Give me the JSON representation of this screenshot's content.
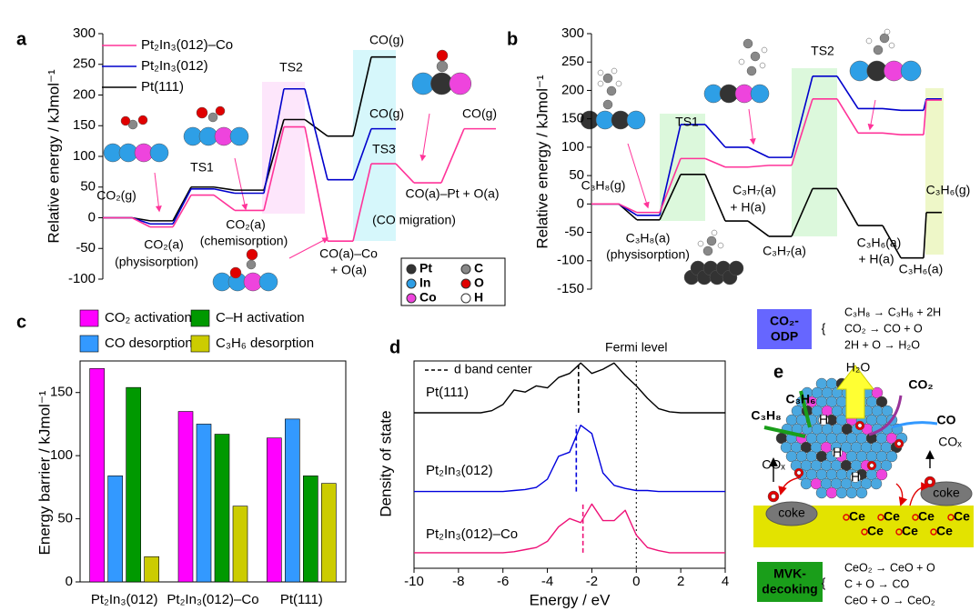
{
  "chart_data": [
    {
      "type": "step",
      "panel": "a",
      "y_label": "Relative energy / kJmol⁻¹",
      "ylim": [
        -100,
        300
      ],
      "yticks": [
        -100,
        -50,
        0,
        50,
        100,
        150,
        200,
        250,
        300
      ],
      "series": [
        {
          "name": "Pt₂In₃(012)–Co",
          "color": "#ff3399",
          "values": [
            0,
            -15,
            37,
            12,
            148,
            -38,
            88,
            57,
            145
          ]
        },
        {
          "name": "Pt₂In₃(012)",
          "color": "#0000cc",
          "values": [
            0,
            -10,
            47,
            40,
            210,
            62,
            145,
            null,
            null
          ]
        },
        {
          "name": "Pt(111)",
          "color": "#000000",
          "values": [
            0,
            -5,
            50,
            45,
            160,
            133,
            262,
            null,
            null
          ]
        }
      ],
      "annotations": [
        "CO₂(g)",
        "CO₂(a)",
        "(physisorption)",
        "TS1",
        "CO₂(a)",
        "(chemisorption)",
        "TS2",
        "CO(g)",
        "CO(g)",
        "TS3",
        "CO(a)–Co",
        "+ O(a)",
        "CO(a)–Pt + O(a)",
        "(CO migration)",
        "CO(g)"
      ],
      "element_key": [
        {
          "name": "Pt",
          "color": "#333333"
        },
        {
          "name": "C",
          "color": "#888888"
        },
        {
          "name": "In",
          "color": "#2e9fe6"
        },
        {
          "name": "O",
          "color": "#e00000"
        },
        {
          "name": "Co",
          "color": "#ee44dd"
        },
        {
          "name": "H",
          "color": "#ffffff"
        }
      ]
    },
    {
      "type": "step",
      "panel": "b",
      "y_label": "Relative energy / kJmol⁻¹",
      "ylim": [
        -150,
        300
      ],
      "yticks": [
        -150,
        -100,
        -50,
        0,
        50,
        100,
        150,
        200,
        250,
        300
      ],
      "series": [
        {
          "name": "Pt₂In₃(012)–Co",
          "color": "#ff3399",
          "values": [
            0,
            -15,
            80,
            65,
            68,
            185,
            125,
            122,
            183
          ]
        },
        {
          "name": "Pt₂In₃(012)",
          "color": "#0000cc",
          "values": [
            0,
            -20,
            140,
            100,
            82,
            225,
            168,
            165,
            185
          ]
        },
        {
          "name": "Pt(111)",
          "color": "#000000",
          "values": [
            0,
            -28,
            52,
            -30,
            -57,
            27,
            -38,
            -95,
            -15
          ]
        }
      ],
      "annotations": [
        "TS1",
        "C₃H₈(g)",
        "C₃H₈(a)",
        "(physisorption)",
        "C₃H₇(a)",
        "+ H(a)",
        "C₃H₇(a)",
        "TS2",
        "C₃H₆(a)",
        "+ H(a)",
        "C₃H₆(a)",
        "C₃H₆(g)"
      ]
    },
    {
      "type": "bar",
      "panel": "c",
      "y_label": "Energy barrier / kJmol⁻¹",
      "categories": [
        "Pt₂In₃(012)",
        "Pt₂In₃(012)–Co",
        "Pt(111)"
      ],
      "ylim": [
        0,
        175
      ],
      "yticks": [
        0,
        50,
        100,
        150
      ],
      "series": [
        {
          "name": "CO₂ activation",
          "color": "#ff00ff",
          "values": [
            169,
            135,
            114
          ]
        },
        {
          "name": "CO desorption",
          "color": "#3399ff",
          "values": [
            84,
            125,
            129
          ]
        },
        {
          "name": "C–H activation",
          "color": "#009900",
          "values": [
            154,
            117,
            84
          ]
        },
        {
          "name": "C₃H₆ desorption",
          "color": "#cccc00",
          "values": [
            20,
            60,
            78
          ]
        }
      ]
    },
    {
      "type": "line",
      "panel": "d",
      "x_label": "Energy / eV",
      "y_label": "Density of state",
      "xlim": [
        -10,
        4
      ],
      "xticks": [
        -10,
        -8,
        -6,
        -4,
        -2,
        0,
        2,
        4
      ],
      "ylim": [
        0,
        10
      ],
      "annotations": [
        "Fermi level"
      ],
      "fermi_level": 0,
      "d_band_label": "d band center",
      "x": [
        -10,
        -9.5,
        -9,
        -8.5,
        -8,
        -7.5,
        -7,
        -6.5,
        -6,
        -5.5,
        -5,
        -4.5,
        -4,
        -3.5,
        -3,
        -2.5,
        -2,
        -1.5,
        -1,
        -0.5,
        0,
        0.5,
        1,
        1.5,
        2,
        2.5,
        3,
        3.5,
        4
      ],
      "series": [
        {
          "name": "Pt(111)",
          "color": "#000000",
          "d_band_center": -2.6,
          "values": [
            7.5,
            7.5,
            7.5,
            7.5,
            7.5,
            7.5,
            7.5,
            7.6,
            7.9,
            8.6,
            8.5,
            8.8,
            8.7,
            9.2,
            9.4,
            9.9,
            9.4,
            9.6,
            9.9,
            9.3,
            8.8,
            8.2,
            7.7,
            7.55,
            7.5,
            7.5,
            7.5,
            7.5,
            7.5
          ]
        },
        {
          "name": "Pt₂In₃(012)",
          "color": "#0000dd",
          "d_band_center": -2.7,
          "values": [
            3.7,
            3.7,
            3.7,
            3.7,
            3.7,
            3.7,
            3.7,
            3.7,
            3.7,
            3.75,
            3.8,
            3.9,
            4.3,
            5.4,
            5.6,
            6.9,
            6.5,
            4.6,
            4.0,
            3.85,
            3.75,
            3.75,
            3.7,
            3.7,
            3.7,
            3.7,
            3.7,
            3.7,
            3.7
          ]
        },
        {
          "name": "Pt₂In₃(012)–Co",
          "color": "#ee1177",
          "d_band_center": -2.4,
          "values": [
            0.75,
            0.75,
            0.75,
            0.75,
            0.75,
            0.75,
            0.75,
            0.75,
            0.75,
            0.8,
            0.9,
            1.0,
            1.3,
            2.0,
            2.4,
            2.2,
            3.1,
            2.3,
            2.3,
            2.8,
            1.6,
            1.0,
            0.85,
            0.75,
            0.75,
            0.75,
            0.75,
            0.75,
            0.75
          ]
        }
      ]
    }
  ],
  "diagram": {
    "panel": "e",
    "odp": {
      "title": [
        "CO₂-",
        "ODP"
      ],
      "equations": [
        "C₃H₈ → C₃H₆ + 2H",
        "CO₂ → CO + O",
        "2H + O → H₂O"
      ]
    },
    "mvk": {
      "title": [
        "MVK-",
        "decoking"
      ],
      "equations": [
        "CeO₂ → CeO + O",
        "C + O → CO",
        "CeO + O → CeO₂"
      ]
    },
    "labels": [
      "C₃H₆",
      "H₂O",
      "CO₂",
      "C₃H₈",
      "CO",
      "COₓ",
      "COₓ",
      "coke",
      "coke"
    ],
    "ce": "Ce",
    "brace": "{",
    "h": "H"
  }
}
